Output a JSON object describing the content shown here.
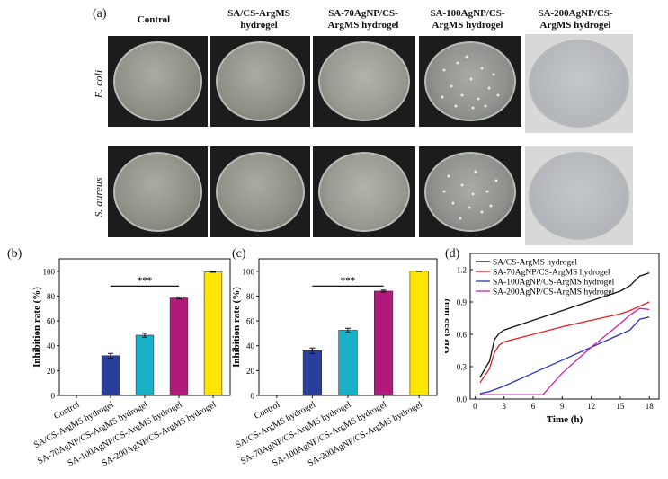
{
  "figure": {
    "panel_letters": {
      "a": "(a)",
      "b": "(b)",
      "c": "(c)",
      "d": "(d)"
    },
    "column_labels": [
      [
        "Control"
      ],
      [
        "SA/CS-ArgMS",
        "hydrogel"
      ],
      [
        "SA-70AgNP/CS-",
        "ArgMS hydrogel"
      ],
      [
        "SA-100AgNP/CS-",
        "ArgMS hydrogel"
      ],
      [
        "SA-200AgNP/CS-",
        "ArgMS hydrogel"
      ]
    ],
    "row_labels": [
      "E. coli",
      "S. aureus"
    ],
    "colors": {
      "SA/CS-ArgMS hydrogel": "#2a3f9b",
      "SA-70AgNP/CS-ArgMS hydrogel": "#1ab0c8",
      "SA-100AgNP/CS-ArgMS hydrogel": "#b01a7a",
      "SA-200AgNP/CS-ArgMS hydrogel": "#ffe600"
    }
  },
  "chart_data": [
    {
      "id": "b",
      "type": "bar",
      "ylabel": "Inhibition rate (%)",
      "ylim": [
        0,
        110
      ],
      "yticks": [
        0,
        20,
        40,
        60,
        80,
        100
      ],
      "categories": [
        "Control",
        "SA/CS-ArgMS hydrogel",
        "SA-70AgNP/CS-ArgMS hydrogel",
        "SA-100AgNP/CS-ArgMS hydrogel",
        "SA-200AgNP/CS-ArgMS hydrogel"
      ],
      "values": [
        0,
        32,
        48.5,
        78.5,
        99.5
      ],
      "errors": [
        0,
        1.8,
        1.6,
        0.8,
        0.3
      ],
      "significance": {
        "label": "***",
        "from": 1,
        "to": 3,
        "y": 88
      }
    },
    {
      "id": "c",
      "type": "bar",
      "ylabel": "Inhibition rate (%)",
      "ylim": [
        0,
        110
      ],
      "yticks": [
        0,
        20,
        40,
        60,
        80,
        100
      ],
      "categories": [
        "Control",
        "SA/CS-ArgMS hydrogel",
        "SA-70AgNP/CS-ArgMS hydrogel",
        "SA-100AgNP/CS-ArgMS hydrogel",
        "SA-200AgNP/CS-ArgMS hydrogel"
      ],
      "values": [
        0,
        36,
        52.5,
        84,
        100
      ],
      "errors": [
        0,
        2.2,
        1.6,
        0.8,
        0.2
      ],
      "significance": {
        "label": "***",
        "from": 1,
        "to": 3,
        "y": 88
      }
    },
    {
      "id": "d",
      "type": "line",
      "xlabel": "Time (h)",
      "ylabel": "OD (595 nm)",
      "xlim": [
        -0.5,
        19
      ],
      "ylim": [
        0,
        1.35
      ],
      "xticks": [
        0,
        3,
        6,
        9,
        12,
        15,
        18
      ],
      "yticks": [
        0.0,
        0.3,
        0.6,
        0.9,
        1.2
      ],
      "series": [
        {
          "name": "SA/CS-ArgMS hydrogel",
          "color": "#111111",
          "x": [
            0.5,
            1.5,
            2,
            2.5,
            3,
            6,
            9,
            12,
            15,
            16,
            17,
            18
          ],
          "y": [
            0.2,
            0.35,
            0.55,
            0.61,
            0.64,
            0.73,
            0.82,
            0.91,
            1.0,
            1.05,
            1.14,
            1.17
          ]
        },
        {
          "name": "SA-70AgNP/CS-ArgMS hydrogel",
          "color": "#e02020",
          "x": [
            0.5,
            1.5,
            2,
            2.5,
            3,
            6,
            9,
            12,
            15,
            16,
            17,
            18
          ],
          "y": [
            0.15,
            0.28,
            0.43,
            0.5,
            0.53,
            0.6,
            0.67,
            0.73,
            0.79,
            0.82,
            0.86,
            0.9
          ]
        },
        {
          "name": "SA-100AgNP/CS-ArgMS hydrogel",
          "color": "#2233bb",
          "x": [
            0.5,
            1.5,
            3,
            6,
            9,
            12,
            15,
            16,
            17,
            18
          ],
          "y": [
            0.05,
            0.07,
            0.12,
            0.24,
            0.36,
            0.48,
            0.6,
            0.64,
            0.74,
            0.76
          ]
        },
        {
          "name": "SA-200AgNP/CS-ArgMS hydrogel",
          "color": "#cc22aa",
          "x": [
            0.5,
            1.5,
            3,
            6,
            7,
            9,
            12,
            15,
            16,
            17,
            18
          ],
          "y": [
            0.04,
            0.04,
            0.04,
            0.04,
            0.04,
            0.24,
            0.48,
            0.7,
            0.78,
            0.84,
            0.83
          ]
        }
      ],
      "legend": "top-left"
    }
  ]
}
